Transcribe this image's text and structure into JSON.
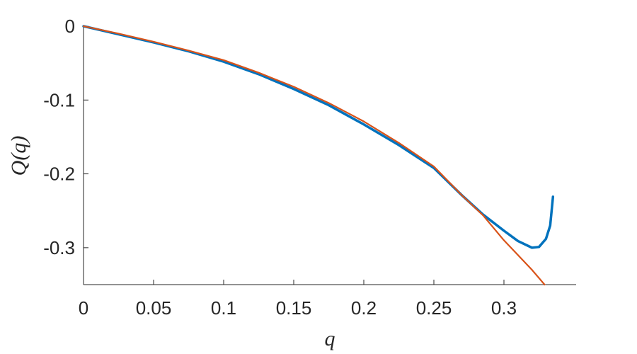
{
  "chart_data": {
    "type": "line",
    "xlabel": "q",
    "ylabel": "Q(q)",
    "xlim": [
      0,
      0.35
    ],
    "ylim": [
      -0.35,
      0
    ],
    "xticks": [
      0,
      0.05,
      0.1,
      0.15,
      0.2,
      0.25,
      0.3
    ],
    "yticks": [
      0,
      -0.1,
      -0.2,
      -0.3
    ],
    "series": [
      {
        "color": "#0072bd",
        "x": [
          0,
          0.025,
          0.05,
          0.075,
          0.1,
          0.125,
          0.15,
          0.175,
          0.2,
          0.225,
          0.25,
          0.27,
          0.285,
          0.3,
          0.31,
          0.32,
          0.325,
          0.33,
          0.333,
          0.335
        ],
        "values": [
          0,
          -0.011,
          -0.022,
          -0.034,
          -0.048,
          -0.065,
          -0.085,
          -0.107,
          -0.133,
          -0.161,
          -0.192,
          -0.229,
          -0.255,
          -0.277,
          -0.291,
          -0.3,
          -0.299,
          -0.288,
          -0.27,
          -0.231
        ]
      },
      {
        "color": "#d95319",
        "x": [
          0,
          0.025,
          0.05,
          0.075,
          0.1,
          0.125,
          0.15,
          0.175,
          0.2,
          0.225,
          0.25,
          0.27,
          0.285,
          0.3,
          0.31,
          0.32,
          0.329
        ],
        "values": [
          0,
          -0.01,
          -0.021,
          -0.033,
          -0.046,
          -0.063,
          -0.082,
          -0.104,
          -0.129,
          -0.158,
          -0.19,
          -0.229,
          -0.256,
          -0.29,
          -0.31,
          -0.33,
          -0.35
        ]
      }
    ]
  }
}
